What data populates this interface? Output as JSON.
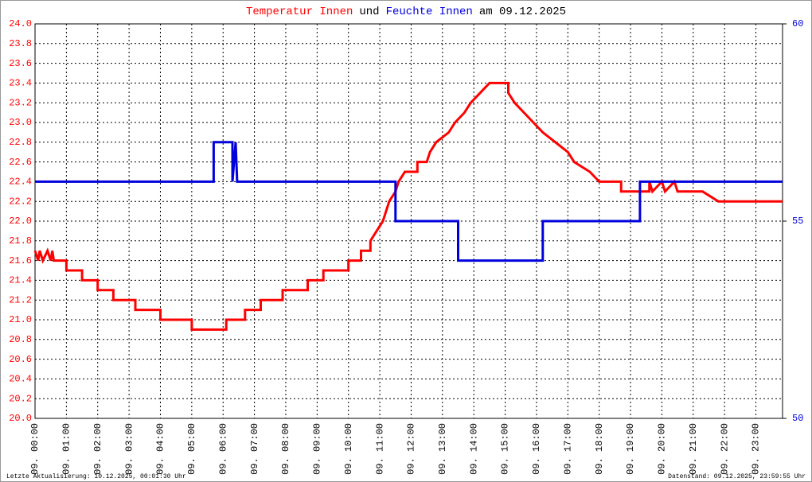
{
  "chart_data": {
    "type": "line",
    "title_connector": "und",
    "title_suffix": "am 09.12.2025",
    "footer_left": "Letzte Aktualisierung: 10.12.2025, 00:01:30 Uhr",
    "footer_right": "Datenstand: 09.12.2025, 23:59:55 Uhr",
    "xlim": [
      0,
      23.85
    ],
    "xticks": [
      {
        "value": 0,
        "label": "09. 00:00"
      },
      {
        "value": 1,
        "label": "09. 01:00"
      },
      {
        "value": 2,
        "label": "09. 02:00"
      },
      {
        "value": 3,
        "label": "09. 03:00"
      },
      {
        "value": 4,
        "label": "09. 04:00"
      },
      {
        "value": 5,
        "label": "09. 05:00"
      },
      {
        "value": 6,
        "label": "09. 06:00"
      },
      {
        "value": 7,
        "label": "09. 07:00"
      },
      {
        "value": 8,
        "label": "09. 08:00"
      },
      {
        "value": 9,
        "label": "09. 09:00"
      },
      {
        "value": 10,
        "label": "09. 10:00"
      },
      {
        "value": 11,
        "label": "09. 11:00"
      },
      {
        "value": 12,
        "label": "09. 12:00"
      },
      {
        "value": 13,
        "label": "09. 13:00"
      },
      {
        "value": 14,
        "label": "09. 14:00"
      },
      {
        "value": 15,
        "label": "09. 15:00"
      },
      {
        "value": 16,
        "label": "09. 16:00"
      },
      {
        "value": 17,
        "label": "09. 17:00"
      },
      {
        "value": 18,
        "label": "09. 18:00"
      },
      {
        "value": 19,
        "label": "09. 19:00"
      },
      {
        "value": 20,
        "label": "09. 20:00"
      },
      {
        "value": 21,
        "label": "09. 21:00"
      },
      {
        "value": 22,
        "label": "09. 22:00"
      },
      {
        "value": 23,
        "label": "09. 23:00"
      }
    ],
    "ylim": [
      20,
      24
    ],
    "yticks": [
      {
        "value": 20,
        "label": "20.0"
      },
      20.2,
      20.4,
      20.6,
      20.8,
      {
        "value": 21,
        "label": "21.0"
      },
      21.2,
      21.4,
      21.6,
      21.8,
      {
        "value": 22,
        "label": "22.0"
      },
      22.2,
      22.4,
      22.6,
      22.8,
      {
        "value": 23,
        "label": "23.0"
      },
      23.2,
      23.4,
      23.6,
      23.8,
      {
        "value": 24,
        "label": "24.0"
      }
    ],
    "y2lim": [
      50,
      60
    ],
    "y2ticks": [
      50,
      55,
      60
    ],
    "grid": true,
    "series": [
      {
        "name": "Temperatur Innen",
        "color": "#ff0000",
        "x": [
          0,
          0.1,
          0.15,
          0.25,
          0.4,
          0.5,
          0.55,
          0.6,
          1.0,
          1.0,
          1.5,
          1.5,
          2.0,
          2.0,
          2.5,
          2.5,
          3.2,
          3.2,
          4.0,
          4.0,
          5.0,
          5.0,
          6.1,
          6.1,
          6.7,
          6.7,
          7.2,
          7.2,
          7.9,
          7.9,
          8.7,
          8.7,
          9.2,
          9.2,
          10.0,
          10.0,
          10.4,
          10.4,
          10.7,
          10.7,
          10.9,
          11.1,
          11.3,
          11.5,
          11.6,
          11.8,
          12.2,
          12.2,
          12.5,
          12.6,
          12.8,
          13.2,
          13.4,
          13.7,
          13.9,
          14.2,
          14.5,
          15.1,
          15.1,
          15.3,
          15.6,
          15.9,
          16.2,
          16.6,
          17.0,
          17.2,
          17.7,
          18.0,
          18.7,
          18.7,
          19.6,
          19.6,
          19.7,
          20.0,
          20.1,
          20.4,
          20.5,
          21.3,
          21.8,
          23.85
        ],
        "values": [
          21.7,
          21.6,
          21.7,
          21.6,
          21.7,
          21.6,
          21.7,
          21.6,
          21.6,
          21.5,
          21.5,
          21.4,
          21.4,
          21.3,
          21.3,
          21.2,
          21.2,
          21.1,
          21.1,
          21.0,
          21.0,
          20.9,
          20.9,
          21.0,
          21.0,
          21.1,
          21.1,
          21.2,
          21.2,
          21.3,
          21.3,
          21.4,
          21.4,
          21.5,
          21.5,
          21.6,
          21.6,
          21.7,
          21.7,
          21.8,
          21.9,
          22.0,
          22.2,
          22.3,
          22.4,
          22.5,
          22.5,
          22.6,
          22.6,
          22.7,
          22.8,
          22.9,
          23.0,
          23.1,
          23.2,
          23.3,
          23.4,
          23.4,
          23.3,
          23.2,
          23.1,
          23.0,
          22.9,
          22.8,
          22.7,
          22.6,
          22.5,
          22.4,
          22.4,
          22.3,
          22.3,
          22.4,
          22.3,
          22.4,
          22.3,
          22.4,
          22.3,
          22.3,
          22.2,
          22.2
        ]
      },
      {
        "name": "Feuchte Innen",
        "color": "#0000dd",
        "axis": "y2",
        "x": [
          0,
          5.7,
          5.7,
          6.3,
          6.3,
          6.4,
          6.45,
          11.5,
          11.5,
          13.5,
          13.5,
          16.2,
          16.2,
          19.3,
          19.3,
          23.85
        ],
        "values": [
          56,
          56,
          57,
          57,
          56,
          57,
          56,
          56,
          55,
          55,
          54,
          54,
          55,
          55,
          56,
          56
        ]
      }
    ]
  }
}
